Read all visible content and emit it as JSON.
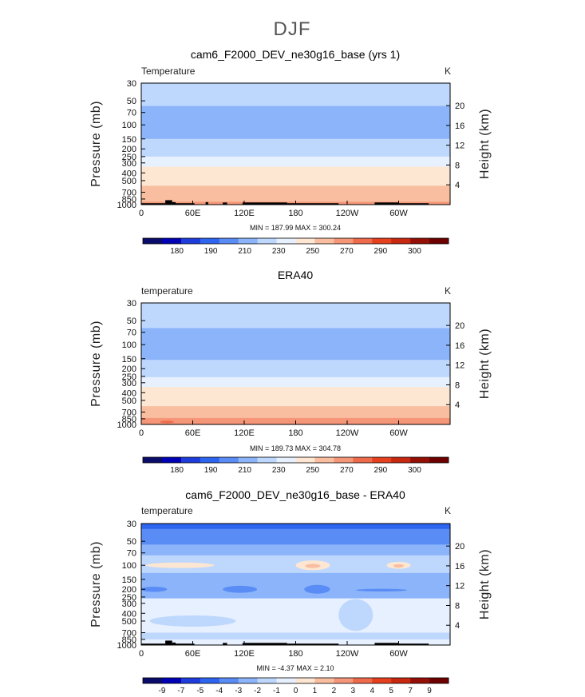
{
  "figure": {
    "title": "DJF"
  },
  "panels": [
    {
      "title": "cam6_F2000_DEV_ne30g16_base (yrs 1)",
      "left_label": "Temperature",
      "right_label": "K",
      "minmax": "MIN = 187.99  MAX = 300.24",
      "colorbar_labels": [
        "180",
        "190",
        "210",
        "230",
        "250",
        "270",
        "290",
        "300"
      ],
      "colorbar_colors": [
        "#0b0b6b",
        "#0000b4",
        "#1e3cdc",
        "#2d64f0",
        "#5a8cf5",
        "#8cb4fa",
        "#bed7fd",
        "#e6f0fe",
        "#fde6d2",
        "#f9bea0",
        "#f59678",
        "#ef6a4a",
        "#e6401e",
        "#c8280f",
        "#960f05",
        "#6e0000"
      ]
    },
    {
      "title": "ERA40",
      "left_label": "temperature",
      "right_label": "K",
      "minmax": "MIN = 189.73  MAX = 304.78",
      "colorbar_labels": [
        "180",
        "190",
        "210",
        "230",
        "250",
        "270",
        "290",
        "300"
      ],
      "colorbar_colors": [
        "#0b0b6b",
        "#0000b4",
        "#1e3cdc",
        "#2d64f0",
        "#5a8cf5",
        "#8cb4fa",
        "#bed7fd",
        "#e6f0fe",
        "#fde6d2",
        "#f9bea0",
        "#f59678",
        "#ef6a4a",
        "#e6401e",
        "#c8280f",
        "#960f05",
        "#6e0000"
      ]
    },
    {
      "title": "cam6_F2000_DEV_ne30g16_base - ERA40",
      "left_label": "temperature",
      "right_label": "K",
      "minmax": "MIN =  -4.37  MAX =   2.10",
      "colorbar_labels": [
        "-9",
        "-7",
        "-5",
        "-4",
        "-3",
        "-2",
        "-1",
        "0",
        "1",
        "2",
        "3",
        "4",
        "5",
        "7",
        "9"
      ],
      "colorbar_colors": [
        "#0b0b6b",
        "#0000b4",
        "#1e3cdc",
        "#2d64f0",
        "#5a8cf5",
        "#8cb4fa",
        "#bed7fd",
        "#e6f0fe",
        "#fde6d2",
        "#f9bea0",
        "#f59678",
        "#ef6a4a",
        "#e6401e",
        "#c8280f",
        "#960f05",
        "#6e0000"
      ]
    }
  ],
  "chart_data": [
    {
      "type": "heatmap",
      "title": "cam6_F2000_DEV_ne30g16_base (yrs 1)",
      "subtitle": "DJF",
      "variable": "Temperature",
      "units": "K",
      "xlabel": "",
      "ylabel": "Pressure (mb)",
      "y2label": "Height (km)",
      "x_ticks": [
        "0",
        "60E",
        "120E",
        "180",
        "120W",
        "60W"
      ],
      "y_ticks": [
        "30",
        "50",
        "70",
        "100",
        "150",
        "200",
        "250",
        "300",
        "400",
        "500",
        "700",
        "850",
        "1000"
      ],
      "y_scale": "log",
      "ylim": [
        1000,
        30
      ],
      "y2_ticks": [
        "20",
        "16",
        "12",
        "8",
        "4"
      ],
      "min": 187.99,
      "max": 300.24,
      "levels": [
        180,
        190,
        210,
        230,
        250,
        270,
        290,
        300
      ],
      "bands": [
        {
          "p_top": 30,
          "p_bottom": 38,
          "value": 215
        },
        {
          "p_top": 38,
          "p_bottom": 58,
          "value": 210
        },
        {
          "p_top": 58,
          "p_bottom": 80,
          "value": 203
        },
        {
          "p_top": 80,
          "p_bottom": 125,
          "value": 195
        },
        {
          "p_top": 125,
          "p_bottom": 150,
          "value": 200
        },
        {
          "p_top": 150,
          "p_bottom": 185,
          "value": 210
        },
        {
          "p_top": 185,
          "p_bottom": 215,
          "value": 220
        },
        {
          "p_top": 215,
          "p_bottom": 250,
          "value": 228
        },
        {
          "p_top": 250,
          "p_bottom": 285,
          "value": 235
        },
        {
          "p_top": 285,
          "p_bottom": 335,
          "value": 242
        },
        {
          "p_top": 335,
          "p_bottom": 400,
          "value": 250
        },
        {
          "p_top": 400,
          "p_bottom": 480,
          "value": 258
        },
        {
          "p_top": 480,
          "p_bottom": 580,
          "value": 265
        },
        {
          "p_top": 580,
          "p_bottom": 700,
          "value": 272
        },
        {
          "p_top": 700,
          "p_bottom": 820,
          "value": 280
        },
        {
          "p_top": 820,
          "p_bottom": 920,
          "value": 288
        },
        {
          "p_top": 920,
          "p_bottom": 1000,
          "value": 295
        }
      ],
      "features": [
        {
          "kind": "blob",
          "lon": 165,
          "p": 100,
          "lon_halfwidth": 18,
          "p_halfheight": 6,
          "value": 190
        }
      ],
      "terrain": [
        {
          "lon_start": 0,
          "lon_end": 28,
          "p_top": 960
        },
        {
          "lon_start": 28,
          "lon_end": 36,
          "p_top": 880
        },
        {
          "lon_start": 36,
          "lon_end": 40,
          "p_top": 930
        },
        {
          "lon_start": 40,
          "lon_end": 62,
          "p_top": 960
        },
        {
          "lon_start": 75,
          "lon_end": 78,
          "p_top": 930
        },
        {
          "lon_start": 95,
          "lon_end": 100,
          "p_top": 940
        },
        {
          "lon_start": 118,
          "lon_end": 170,
          "p_top": 940
        },
        {
          "lon_start": 170,
          "lon_end": 230,
          "p_top": 960
        },
        {
          "lon_start": 272,
          "lon_end": 300,
          "p_top": 940
        },
        {
          "lon_start": 300,
          "lon_end": 335,
          "p_top": 960
        }
      ]
    },
    {
      "type": "heatmap",
      "title": "ERA40",
      "variable": "temperature",
      "units": "K",
      "xlabel": "",
      "ylabel": "Pressure (mb)",
      "y2label": "Height (km)",
      "x_ticks": [
        "0",
        "60E",
        "120E",
        "180",
        "120W",
        "60W"
      ],
      "y_ticks": [
        "30",
        "50",
        "70",
        "100",
        "150",
        "200",
        "250",
        "300",
        "400",
        "500",
        "700",
        "850",
        "1000"
      ],
      "y_scale": "log",
      "ylim": [
        1000,
        30
      ],
      "y2_ticks": [
        "20",
        "16",
        "12",
        "8",
        "4"
      ],
      "min": 189.73,
      "max": 304.78,
      "levels": [
        180,
        190,
        210,
        230,
        250,
        270,
        290,
        300
      ],
      "bands": [
        {
          "p_top": 30,
          "p_bottom": 45,
          "value": 220
        },
        {
          "p_top": 45,
          "p_bottom": 62,
          "value": 213
        },
        {
          "p_top": 62,
          "p_bottom": 82,
          "value": 203
        },
        {
          "p_top": 82,
          "p_bottom": 125,
          "value": 195
        },
        {
          "p_top": 125,
          "p_bottom": 155,
          "value": 201
        },
        {
          "p_top": 155,
          "p_bottom": 190,
          "value": 211
        },
        {
          "p_top": 190,
          "p_bottom": 220,
          "value": 221
        },
        {
          "p_top": 220,
          "p_bottom": 255,
          "value": 229
        },
        {
          "p_top": 255,
          "p_bottom": 290,
          "value": 236
        },
        {
          "p_top": 290,
          "p_bottom": 340,
          "value": 243
        },
        {
          "p_top": 340,
          "p_bottom": 405,
          "value": 251
        },
        {
          "p_top": 405,
          "p_bottom": 490,
          "value": 259
        },
        {
          "p_top": 490,
          "p_bottom": 590,
          "value": 267
        },
        {
          "p_top": 590,
          "p_bottom": 710,
          "value": 275
        },
        {
          "p_top": 710,
          "p_bottom": 830,
          "value": 283
        },
        {
          "p_top": 830,
          "p_bottom": 930,
          "value": 291
        },
        {
          "p_top": 930,
          "p_bottom": 1000,
          "value": 298
        }
      ],
      "features": [
        {
          "kind": "blob",
          "lon": 150,
          "p": 100,
          "lon_halfwidth": 6,
          "p_halfheight": 3,
          "value": 191
        },
        {
          "kind": "blob",
          "lon": 30,
          "p": 930,
          "lon_halfwidth": 8,
          "p_halfheight": 30,
          "value": 300
        }
      ],
      "terrain": []
    },
    {
      "type": "heatmap",
      "title": "cam6_F2000_DEV_ne30g16_base - ERA40",
      "variable": "temperature",
      "units": "K",
      "xlabel": "",
      "ylabel": "Pressure (mb)",
      "y2label": "Height (km)",
      "x_ticks": [
        "0",
        "60E",
        "120E",
        "180",
        "120W",
        "60W"
      ],
      "y_ticks": [
        "30",
        "50",
        "70",
        "100",
        "150",
        "200",
        "250",
        "300",
        "400",
        "500",
        "700",
        "850",
        "1000"
      ],
      "y_scale": "log",
      "ylim": [
        1000,
        30
      ],
      "y2_ticks": [
        "20",
        "16",
        "12",
        "8",
        "4"
      ],
      "min": -4.37,
      "max": 2.1,
      "levels": [
        -9,
        -7,
        -5,
        -4,
        -3,
        -2,
        -1,
        0,
        1,
        2,
        3,
        4,
        5,
        7,
        9
      ],
      "bands": [
        {
          "p_top": 30,
          "p_bottom": 35,
          "value": -4.2
        },
        {
          "p_top": 35,
          "p_bottom": 55,
          "value": -3.5
        },
        {
          "p_top": 55,
          "p_bottom": 75,
          "value": -2.5
        },
        {
          "p_top": 75,
          "p_bottom": 125,
          "value": -1.5
        },
        {
          "p_top": 125,
          "p_bottom": 175,
          "value": -2.5
        },
        {
          "p_top": 175,
          "p_bottom": 260,
          "value": -2.5
        },
        {
          "p_top": 260,
          "p_bottom": 700,
          "value": -0.5
        },
        {
          "p_top": 700,
          "p_bottom": 850,
          "value": -1.5
        },
        {
          "p_top": 850,
          "p_bottom": 1000,
          "value": -0.5
        }
      ],
      "features": [
        {
          "kind": "blob",
          "lon": 45,
          "p": 100,
          "lon_halfwidth": 40,
          "p_halfheight": 8,
          "value": 0.5
        },
        {
          "kind": "blob",
          "lon": 200,
          "p": 100,
          "lon_halfwidth": 20,
          "p_halfheight": 14,
          "value": 0.5
        },
        {
          "kind": "blob",
          "lon": 200,
          "p": 102,
          "lon_halfwidth": 9,
          "p_halfheight": 6,
          "value": 1.5
        },
        {
          "kind": "blob",
          "lon": 300,
          "p": 100,
          "lon_halfwidth": 14,
          "p_halfheight": 10,
          "value": 0.5
        },
        {
          "kind": "blob",
          "lon": 300,
          "p": 102,
          "lon_halfwidth": 6,
          "p_halfheight": 5,
          "value": 1.5
        },
        {
          "kind": "blob",
          "lon": 115,
          "p": 200,
          "lon_halfwidth": 20,
          "p_halfheight": 20,
          "value": -3.5
        },
        {
          "kind": "blob",
          "lon": 205,
          "p": 200,
          "lon_halfwidth": 15,
          "p_halfheight": 25,
          "value": -3.5
        },
        {
          "kind": "blob",
          "lon": 15,
          "p": 200,
          "lon_halfwidth": 15,
          "p_halfheight": 15,
          "value": -3.5
        },
        {
          "kind": "blob",
          "lon": 280,
          "p": 205,
          "lon_halfwidth": 30,
          "p_halfheight": 8,
          "value": -3.5
        },
        {
          "kind": "blob",
          "lon": 250,
          "p": 420,
          "lon_halfwidth": 20,
          "p_halfheight": 180,
          "value": -1.5
        },
        {
          "kind": "blob",
          "lon": 60,
          "p": 500,
          "lon_halfwidth": 50,
          "p_halfheight": 80,
          "value": -1.5
        }
      ],
      "terrain": [
        {
          "lon_start": 0,
          "lon_end": 28,
          "p_top": 960
        },
        {
          "lon_start": 28,
          "lon_end": 36,
          "p_top": 880
        },
        {
          "lon_start": 36,
          "lon_end": 40,
          "p_top": 930
        },
        {
          "lon_start": 40,
          "lon_end": 62,
          "p_top": 960
        },
        {
          "lon_start": 95,
          "lon_end": 100,
          "p_top": 940
        },
        {
          "lon_start": 118,
          "lon_end": 170,
          "p_top": 940
        },
        {
          "lon_start": 170,
          "lon_end": 230,
          "p_top": 960
        },
        {
          "lon_start": 272,
          "lon_end": 300,
          "p_top": 940
        },
        {
          "lon_start": 300,
          "lon_end": 335,
          "p_top": 960
        }
      ]
    }
  ]
}
